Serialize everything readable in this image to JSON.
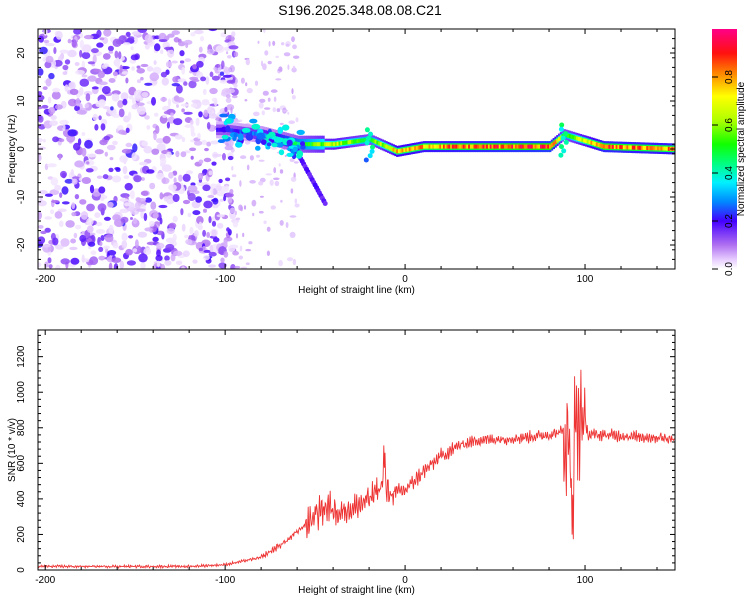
{
  "title": "S196.2025.348.08.08.C21",
  "chart_data": [
    {
      "type": "heatmap",
      "xlabel": "Height of straight line (km)",
      "ylabel": "Frequency (Hz)",
      "xlim": [
        -204,
        150
      ],
      "ylim": [
        -25,
        25
      ],
      "xticks": [
        -200,
        -100,
        0,
        100
      ],
      "yticks": [
        -20,
        -10,
        0,
        10,
        20
      ],
      "ridge": [
        {
          "x": -100,
          "freq": 4,
          "amp": 0.22
        },
        {
          "x": -80,
          "freq": 3,
          "amp": 0.3
        },
        {
          "x": -60,
          "freq": 1,
          "amp": 0.5
        },
        {
          "x": -40,
          "freq": 1,
          "amp": 0.7
        },
        {
          "x": -20,
          "freq": 2,
          "amp": 0.55
        },
        {
          "x": -5,
          "freq": -0.5,
          "amp": 0.8
        },
        {
          "x": 10,
          "freq": 0.5,
          "amp": 0.85
        },
        {
          "x": 40,
          "freq": 0.5,
          "amp": 0.9
        },
        {
          "x": 80,
          "freq": 0.5,
          "amp": 0.95
        },
        {
          "x": 88,
          "freq": 3,
          "amp": 0.55
        },
        {
          "x": 110,
          "freq": 0.5,
          "amp": 0.9
        },
        {
          "x": 150,
          "freq": 0,
          "amp": 0.85
        }
      ],
      "colorbar": {
        "label": "Normalized spectral amplitude",
        "ticks": [
          "0.0",
          "0.2",
          "0.4",
          "0.6",
          "0.8"
        ],
        "range": [
          0,
          1
        ]
      }
    },
    {
      "type": "line",
      "xlabel": "Height of straight line (km)",
      "ylabel": "SNR (10 * v/v)",
      "xlim": [
        -204,
        150
      ],
      "ylim": [
        0,
        1350
      ],
      "xticks": [
        -200,
        -100,
        0,
        100
      ],
      "yticks": [
        0,
        200,
        400,
        600,
        800,
        1000,
        1200
      ],
      "series": [
        {
          "name": "SNR",
          "color": "#ee3333",
          "x": [
            -200,
            -150,
            -120,
            -100,
            -80,
            -65,
            -55,
            -45,
            -38,
            -30,
            -20,
            -13,
            -8,
            0,
            10,
            20,
            30,
            40,
            60,
            80,
            88,
            92,
            95,
            98,
            102,
            110,
            130,
            150
          ],
          "y": [
            20,
            20,
            20,
            30,
            70,
            170,
            260,
            360,
            330,
            340,
            400,
            470,
            430,
            450,
            550,
            640,
            700,
            730,
            740,
            760,
            780,
            650,
            720,
            900,
            760,
            760,
            750,
            740
          ]
        }
      ]
    }
  ]
}
